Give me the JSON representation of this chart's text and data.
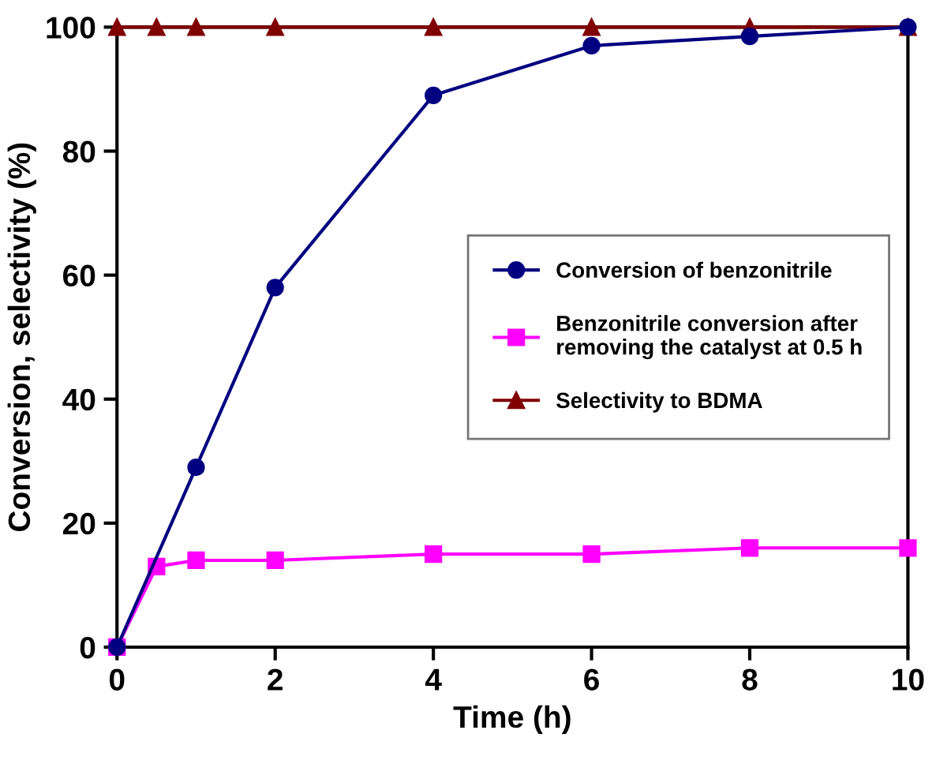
{
  "chart_data": {
    "type": "line",
    "xlabel": "Time (h)",
    "ylabel": "Conversion, selectivity (%)",
    "xlim": [
      0,
      10
    ],
    "ylim": [
      0,
      100
    ],
    "xticks": [
      0,
      2,
      4,
      6,
      8,
      10
    ],
    "yticks": [
      0,
      20,
      40,
      60,
      80,
      100
    ],
    "grid": false,
    "legend": "right",
    "series": [
      {
        "name": "Conversion of benzonitrile",
        "color": "#000080",
        "marker": "circle",
        "x": [
          0,
          1,
          2,
          4,
          6,
          8,
          10
        ],
        "values": [
          0,
          29,
          58,
          89,
          97,
          98.5,
          100
        ]
      },
      {
        "name": "Benzonitrile conversion after\nremoving the catalyst at 0.5 h",
        "color": "#ff00ff",
        "marker": "square",
        "x": [
          0,
          0.5,
          1,
          2,
          4,
          6,
          8,
          10
        ],
        "values": [
          0,
          13,
          14,
          14,
          15,
          15,
          16,
          16
        ]
      },
      {
        "name": "Selectivity to BDMA",
        "color": "#800000",
        "marker": "triangle",
        "x": [
          0,
          0.5,
          1,
          2,
          4,
          6,
          8,
          10
        ],
        "values": [
          100,
          100,
          100,
          100,
          100,
          100,
          100,
          100
        ]
      }
    ]
  }
}
